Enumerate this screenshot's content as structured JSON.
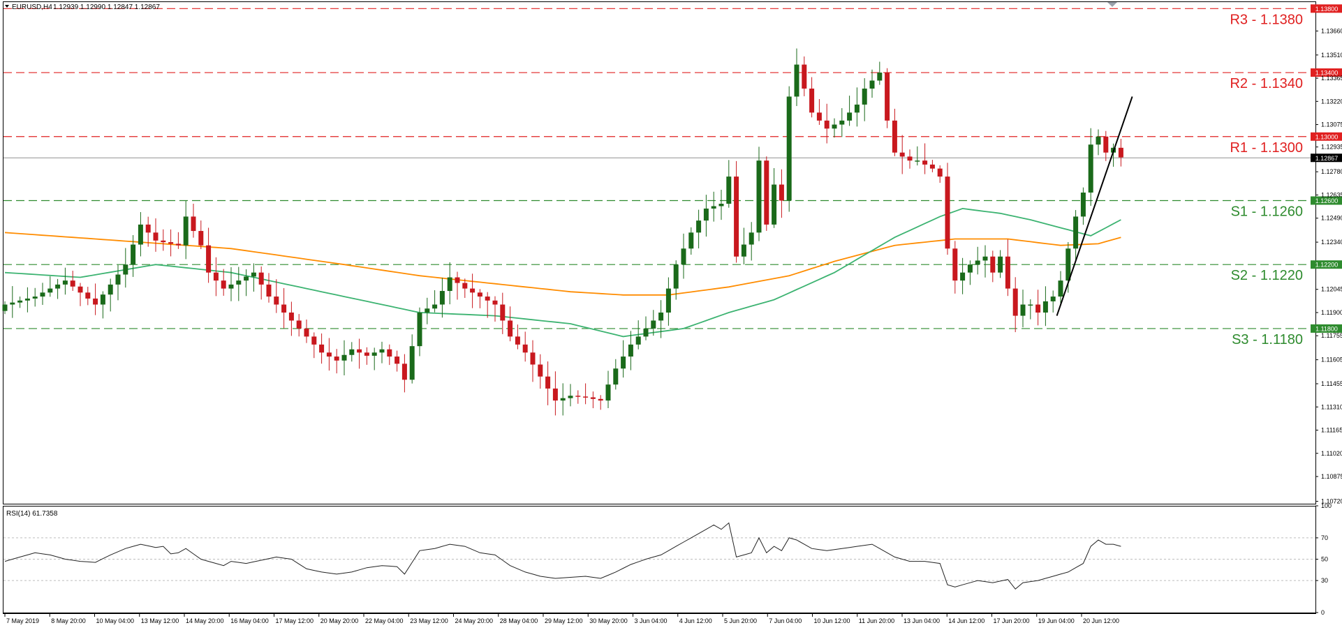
{
  "header": {
    "symbol": "EURUSD,H4",
    "ohlc": "1.12939 1.12990 1.12847 1.12867"
  },
  "rsi_header": "RSI(14) 61.7358",
  "colors": {
    "bull": "#1a6a1a",
    "bear": "#c8181e",
    "resistance": "#e02020",
    "support": "#2e8b2e",
    "ma_fast": "#3cb371",
    "ma_slow": "#ff8c00",
    "price_line": "#909090",
    "trendline": "#000000"
  },
  "chart_data": [
    {
      "type": "candlestick",
      "symbol": "EURUSD",
      "timeframe": "H4",
      "ylim": [
        1.10705,
        1.13845
      ],
      "y_ticks": [
        "1.13660",
        "1.13510",
        "1.13365",
        "1.13220",
        "1.13075",
        "1.12935",
        "1.12780",
        "1.12635",
        "1.12490",
        "1.12340",
        "1.12045",
        "1.11900",
        "1.11755",
        "1.11605",
        "1.11455",
        "1.11310",
        "1.11165",
        "1.11020",
        "1.10875",
        "1.10720"
      ],
      "x_ticks": [
        "7 May 2019",
        "8 May 20:00",
        "10 May 04:00",
        "13 May 12:00",
        "14 May 20:00",
        "16 May 04:00",
        "17 May 12:00",
        "20 May 20:00",
        "22 May 04:00",
        "23 May 12:00",
        "24 May 20:00",
        "28 May 04:00",
        "29 May 12:00",
        "30 May 20:00",
        "3 Jun 04:00",
        "4 Jun 12:00",
        "5 Jun 20:00",
        "7 Jun 04:00",
        "10 Jun 12:00",
        "11 Jun 20:00",
        "13 Jun 04:00",
        "14 Jun 12:00",
        "17 Jun 20:00",
        "19 Jun 04:00",
        "20 Jun 12:00"
      ],
      "levels": [
        {
          "label": "R3 - 1.1380",
          "tag": "1.13800",
          "value": 1.138,
          "kind": "resistance"
        },
        {
          "label": "R2 - 1.1340",
          "tag": "1.13400",
          "value": 1.134,
          "kind": "resistance"
        },
        {
          "label": "R1 - 1.1300",
          "tag": "1.13000",
          "value": 1.13,
          "kind": "resistance"
        },
        {
          "label": "S1 - 1.1260",
          "tag": "1.12600",
          "value": 1.126,
          "kind": "support"
        },
        {
          "label": "S2 - 1.1220",
          "tag": "1.12200",
          "value": 1.122,
          "kind": "support"
        },
        {
          "label": "S3 - 1.1180",
          "tag": "1.11800",
          "value": 1.118,
          "kind": "support"
        }
      ],
      "current_price": {
        "value": 1.12867,
        "tag": "1.12867"
      },
      "close_path": [
        [
          0,
          1.1195
        ],
        [
          4,
          1.12
        ],
        [
          8,
          1.121
        ],
        [
          12,
          1.1195
        ],
        [
          16,
          1.122
        ],
        [
          18,
          1.1245
        ],
        [
          20,
          1.1235
        ],
        [
          23,
          1.1232
        ],
        [
          24,
          1.125
        ],
        [
          26,
          1.1232
        ],
        [
          27,
          1.1215
        ],
        [
          29,
          1.1205
        ],
        [
          31,
          1.121
        ],
        [
          33,
          1.1215
        ],
        [
          35,
          1.12
        ],
        [
          37,
          1.119
        ],
        [
          38,
          1.1185
        ],
        [
          40,
          1.1175
        ],
        [
          42,
          1.1165
        ],
        [
          44,
          1.116
        ],
        [
          46,
          1.1167
        ],
        [
          48,
          1.1163
        ],
        [
          50,
          1.1167
        ],
        [
          52,
          1.1158
        ],
        [
          53,
          1.1148
        ],
        [
          55,
          1.119
        ],
        [
          57,
          1.1195
        ],
        [
          59,
          1.1212
        ],
        [
          61,
          1.1205
        ],
        [
          63,
          1.12
        ],
        [
          65,
          1.1195
        ],
        [
          67,
          1.1175
        ],
        [
          69,
          1.1165
        ],
        [
          71,
          1.115
        ],
        [
          73,
          1.1135
        ],
        [
          75,
          1.1138
        ],
        [
          77,
          1.1137
        ],
        [
          79,
          1.1135
        ],
        [
          81,
          1.1155
        ],
        [
          83,
          1.117
        ],
        [
          85,
          1.118
        ],
        [
          87,
          1.119
        ],
        [
          89,
          1.122
        ],
        [
          91,
          1.124
        ],
        [
          93,
          1.1255
        ],
        [
          95,
          1.1258
        ],
        [
          96,
          1.1275
        ],
        [
          97,
          1.1225
        ],
        [
          99,
          1.124
        ],
        [
          100,
          1.1285
        ],
        [
          101,
          1.1245
        ],
        [
          102,
          1.127
        ],
        [
          103,
          1.126
        ],
        [
          104,
          1.1325
        ],
        [
          105,
          1.1345
        ],
        [
          107,
          1.1315
        ],
        [
          109,
          1.1305
        ],
        [
          111,
          1.131
        ],
        [
          113,
          1.132
        ],
        [
          114,
          1.133
        ],
        [
          116,
          1.134
        ],
        [
          117,
          1.131
        ],
        [
          118,
          1.129
        ],
        [
          120,
          1.1285
        ],
        [
          121,
          1.1285
        ],
        [
          123,
          1.128
        ],
        [
          124,
          1.1275
        ],
        [
          125,
          1.123
        ],
        [
          126,
          1.121
        ],
        [
          127,
          1.1215
        ],
        [
          128,
          1.122
        ],
        [
          130,
          1.1225
        ],
        [
          131,
          1.1215
        ],
        [
          132,
          1.1225
        ],
        [
          133,
          1.1205
        ],
        [
          134,
          1.1188
        ],
        [
          135,
          1.1195
        ],
        [
          136,
          1.1195
        ],
        [
          137,
          1.119
        ],
        [
          138,
          1.1197
        ],
        [
          139,
          1.12
        ],
        [
          140,
          1.121
        ],
        [
          141,
          1.123
        ],
        [
          142,
          1.125
        ],
        [
          143,
          1.1265
        ],
        [
          144,
          1.1295
        ],
        [
          145,
          1.13
        ],
        [
          146,
          1.129
        ],
        [
          147,
          1.1293
        ],
        [
          148,
          1.1287
        ]
      ],
      "ma_slow_path": [
        [
          0,
          1.124
        ],
        [
          15,
          1.1235
        ],
        [
          30,
          1.123
        ],
        [
          45,
          1.122
        ],
        [
          55,
          1.1213
        ],
        [
          65,
          1.1208
        ],
        [
          75,
          1.1203
        ],
        [
          82,
          1.1201
        ],
        [
          88,
          1.1201
        ],
        [
          96,
          1.1206
        ],
        [
          104,
          1.1213
        ],
        [
          110,
          1.1222
        ],
        [
          118,
          1.1232
        ],
        [
          126,
          1.1236
        ],
        [
          133,
          1.1236
        ],
        [
          140,
          1.1232
        ],
        [
          145,
          1.1233
        ],
        [
          148,
          1.1237
        ]
      ],
      "ma_fast_path": [
        [
          0,
          1.1215
        ],
        [
          10,
          1.1212
        ],
        [
          20,
          1.122
        ],
        [
          30,
          1.1215
        ],
        [
          40,
          1.1205
        ],
        [
          55,
          1.119
        ],
        [
          65,
          1.1188
        ],
        [
          75,
          1.1183
        ],
        [
          82,
          1.1175
        ],
        [
          90,
          1.118
        ],
        [
          96,
          1.119
        ],
        [
          102,
          1.1198
        ],
        [
          110,
          1.1215
        ],
        [
          118,
          1.1237
        ],
        [
          124,
          1.125
        ],
        [
          127,
          1.1255
        ],
        [
          132,
          1.1252
        ],
        [
          136,
          1.1248
        ],
        [
          140,
          1.1243
        ],
        [
          144,
          1.1238
        ],
        [
          148,
          1.1248
        ]
      ],
      "trendline": {
        "from": [
          139.5,
          1.1188
        ],
        "to": [
          149.5,
          1.1325
        ]
      }
    },
    {
      "type": "line",
      "indicator": "RSI(14)",
      "value": 61.7358,
      "ylim": [
        0,
        100
      ],
      "levels": [
        70,
        50,
        30
      ],
      "y_ticks": [
        "100",
        "70",
        "50",
        "30",
        "0"
      ],
      "path": [
        [
          0,
          48
        ],
        [
          2,
          52
        ],
        [
          4,
          56
        ],
        [
          6,
          54
        ],
        [
          8,
          50
        ],
        [
          10,
          48
        ],
        [
          12,
          47
        ],
        [
          14,
          54
        ],
        [
          16,
          60
        ],
        [
          18,
          64
        ],
        [
          20,
          61
        ],
        [
          21,
          62
        ],
        [
          22,
          55
        ],
        [
          23,
          56
        ],
        [
          24,
          60
        ],
        [
          26,
          50
        ],
        [
          28,
          46
        ],
        [
          29,
          44
        ],
        [
          30,
          48
        ],
        [
          32,
          46
        ],
        [
          34,
          49
        ],
        [
          36,
          52
        ],
        [
          38,
          50
        ],
        [
          40,
          41
        ],
        [
          42,
          38
        ],
        [
          44,
          36
        ],
        [
          46,
          38
        ],
        [
          48,
          42
        ],
        [
          50,
          44
        ],
        [
          52,
          43
        ],
        [
          53,
          36
        ],
        [
          55,
          58
        ],
        [
          57,
          60
        ],
        [
          59,
          64
        ],
        [
          61,
          62
        ],
        [
          63,
          56
        ],
        [
          65,
          54
        ],
        [
          67,
          44
        ],
        [
          69,
          38
        ],
        [
          71,
          34
        ],
        [
          73,
          32
        ],
        [
          75,
          33
        ],
        [
          77,
          34
        ],
        [
          79,
          32
        ],
        [
          81,
          38
        ],
        [
          83,
          45
        ],
        [
          85,
          50
        ],
        [
          87,
          54
        ],
        [
          89,
          62
        ],
        [
          91,
          70
        ],
        [
          93,
          78
        ],
        [
          94,
          82
        ],
        [
          95,
          78
        ],
        [
          96,
          84
        ],
        [
          97,
          52
        ],
        [
          99,
          56
        ],
        [
          100,
          70
        ],
        [
          101,
          56
        ],
        [
          102,
          62
        ],
        [
          103,
          58
        ],
        [
          104,
          70
        ],
        [
          105,
          68
        ],
        [
          107,
          60
        ],
        [
          109,
          58
        ],
        [
          111,
          60
        ],
        [
          113,
          62
        ],
        [
          115,
          64
        ],
        [
          117,
          56
        ],
        [
          118,
          52
        ],
        [
          120,
          48
        ],
        [
          122,
          48
        ],
        [
          124,
          46
        ],
        [
          125,
          26
        ],
        [
          126,
          24
        ],
        [
          127,
          26
        ],
        [
          129,
          30
        ],
        [
          131,
          28
        ],
        [
          133,
          31
        ],
        [
          134,
          22
        ],
        [
          135,
          28
        ],
        [
          137,
          30
        ],
        [
          139,
          34
        ],
        [
          141,
          38
        ],
        [
          143,
          46
        ],
        [
          144,
          62
        ],
        [
          145,
          68
        ],
        [
          146,
          64
        ],
        [
          147,
          64
        ],
        [
          148,
          62
        ]
      ]
    }
  ]
}
